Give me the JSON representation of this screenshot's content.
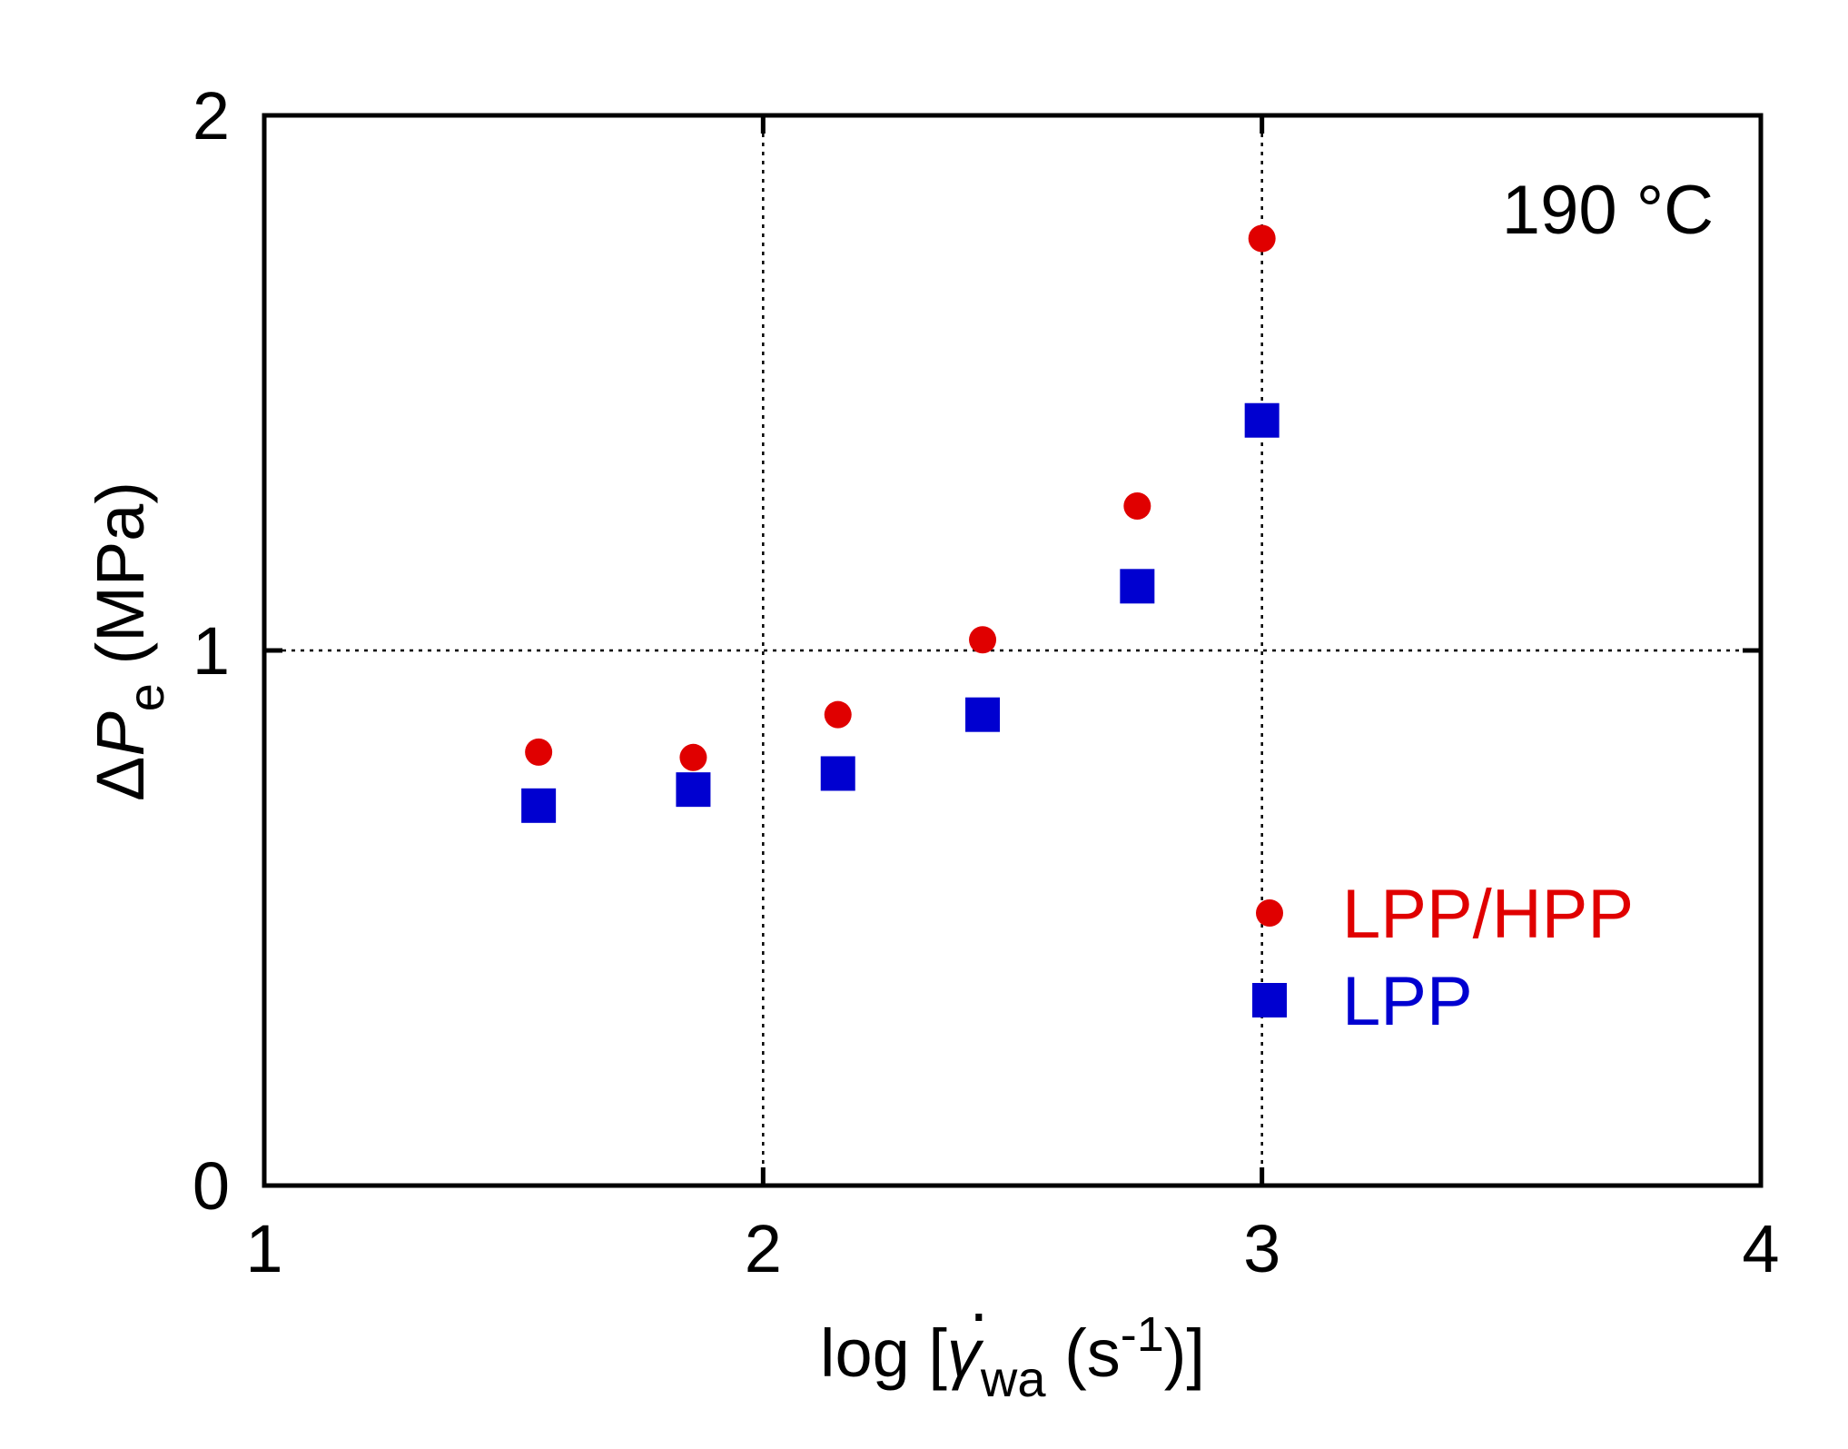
{
  "chart_data": {
    "type": "scatter",
    "xlim": [
      1,
      4
    ],
    "ylim": [
      0,
      2
    ],
    "x_ticks": [
      "1",
      "2",
      "3",
      "4"
    ],
    "y_ticks": [
      "0",
      "1",
      "2"
    ],
    "xlabel": {
      "main": "log [",
      "symbol": "γ",
      "sub": "wa",
      "unit_open": " (s",
      "sup": "-1",
      "unit_close": ")]"
    },
    "ylabel": {
      "delta": "Δ",
      "var": "P",
      "sub": "e",
      "unit": " (MPa)"
    },
    "grid": {
      "x_at": [
        2,
        3
      ],
      "y_at": [
        1
      ],
      "style": "dotted"
    },
    "annotation": "190 °C",
    "legend_position": "lower-right",
    "series": [
      {
        "name": "LPP/HPP",
        "marker": "circle",
        "color": "#e00000",
        "x": [
          1.55,
          1.86,
          2.15,
          2.44,
          2.75,
          3.0
        ],
        "y": [
          0.81,
          0.8,
          0.88,
          1.02,
          1.27,
          1.77
        ]
      },
      {
        "name": "LPP",
        "marker": "square",
        "color": "#0000d0",
        "x": [
          1.55,
          1.86,
          2.15,
          2.44,
          2.75,
          3.0
        ],
        "y": [
          0.71,
          0.74,
          0.77,
          0.88,
          1.12,
          1.43
        ]
      }
    ]
  }
}
